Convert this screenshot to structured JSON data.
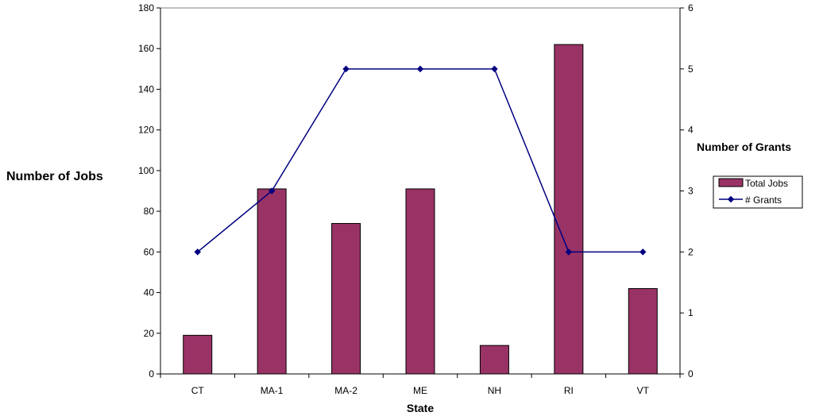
{
  "chart_data": {
    "type": "bar",
    "categories": [
      "CT",
      "MA-1",
      "MA-2",
      "ME",
      "NH",
      "RI",
      "VT"
    ],
    "series": [
      {
        "name": "Total Jobs",
        "type": "bar",
        "axis": "left",
        "color": "#993366",
        "values": [
          19,
          91,
          74,
          91,
          14,
          162,
          42
        ]
      },
      {
        "name": "# Grants",
        "type": "line",
        "axis": "right",
        "color": "#000080",
        "values": [
          2,
          3,
          5,
          5,
          5,
          2,
          2
        ]
      }
    ],
    "xlabel": "State",
    "ylabel": "Number of Jobs",
    "y2label": "Number of Grants",
    "ylim": [
      0,
      180
    ],
    "yticks": [
      0,
      20,
      40,
      60,
      80,
      100,
      120,
      140,
      160,
      180
    ],
    "y2lim": [
      0,
      6
    ],
    "y2ticks": [
      0,
      1,
      2,
      3,
      4,
      5,
      6
    ],
    "grid": false,
    "legend_position": "right"
  }
}
